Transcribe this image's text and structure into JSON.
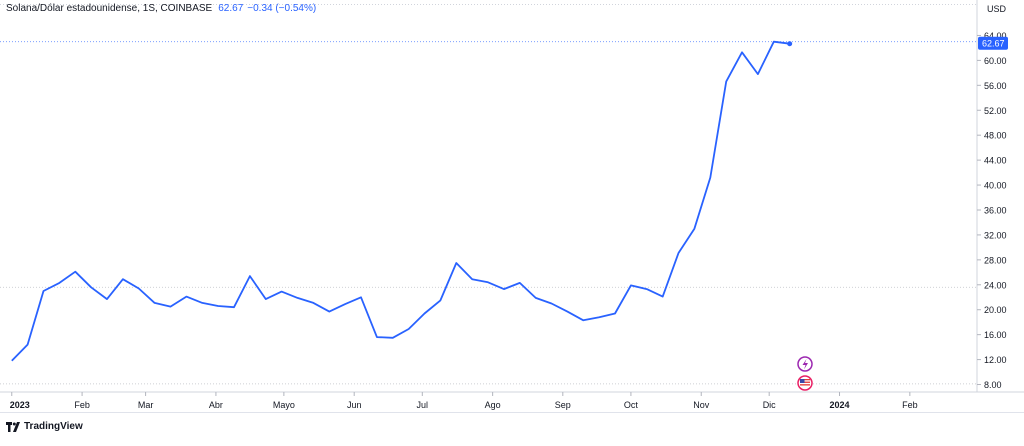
{
  "legend": {
    "symbol": "Solana/Dólar estadounidense, 1S, COINBASE",
    "last": "62.67",
    "change": "−0.34 (−0.54%)"
  },
  "currency": "USD",
  "brand": "TradingView",
  "colors": {
    "line": "#2962ff",
    "axis_text": "#131722",
    "grid": "#e0e3eb",
    "badge_bg": "#2962ff",
    "marker_purple": "#9c27b0",
    "marker_red": "#e91e63"
  },
  "event_icons": [
    "lightning-icon",
    "us-flag-icon"
  ],
  "chart_data": {
    "type": "line",
    "title": "",
    "xlabel": "",
    "ylabel": "",
    "ylim": [
      6.8,
      66.8
    ],
    "xlim": [
      -0.3,
      60.8
    ],
    "y_ticks": [
      8,
      12,
      16,
      20,
      24,
      28,
      32,
      36,
      40,
      44,
      48,
      52,
      56,
      60,
      64
    ],
    "y_tick_labels": [
      "8.00",
      "12.00",
      "16.00",
      "20.00",
      "24.00",
      "28.00",
      "32.00",
      "36.00",
      "40.00",
      "44.00",
      "48.00",
      "52.00",
      "56.00",
      "60.00",
      "64.00"
    ],
    "x_ticks": [
      {
        "label": "2023",
        "week": 0.0
      },
      {
        "label": "Feb",
        "week": 4.43
      },
      {
        "label": "Mar",
        "week": 8.43
      },
      {
        "label": "Abr",
        "week": 12.86
      },
      {
        "label": "Mayo",
        "week": 17.14
      },
      {
        "label": "Jun",
        "week": 21.57
      },
      {
        "label": "Jul",
        "week": 25.86
      },
      {
        "label": "Ago",
        "week": 30.29
      },
      {
        "label": "Sep",
        "week": 34.71
      },
      {
        "label": "Oct",
        "week": 39.0
      },
      {
        "label": "Nov",
        "week": 43.43
      },
      {
        "label": "Dic",
        "week": 47.71
      },
      {
        "label": "2024",
        "week": 52.14
      },
      {
        "label": "Feb",
        "week": 56.57
      }
    ],
    "series": [
      {
        "values": [
          11.8,
          14.4,
          23.0,
          24.3,
          26.1,
          23.6,
          21.7,
          24.9,
          23.4,
          21.1,
          20.5,
          22.1,
          21.1,
          20.6,
          20.4,
          25.4,
          21.7,
          22.9,
          21.9,
          21.1,
          19.7,
          20.9,
          22.0,
          15.6,
          15.5,
          16.9,
          19.4,
          21.5,
          27.5,
          24.9,
          24.4,
          23.3,
          24.3,
          21.9,
          21.0,
          19.7,
          18.3,
          18.8,
          19.4,
          23.9,
          23.3,
          22.1,
          29.1,
          33.0,
          41.2,
          56.6,
          61.3,
          57.8,
          63.0,
          62.67
        ]
      }
    ],
    "last_value_label": "62.67",
    "dashed_levels": [
      63.0,
      23.6,
      8.1
    ]
  }
}
